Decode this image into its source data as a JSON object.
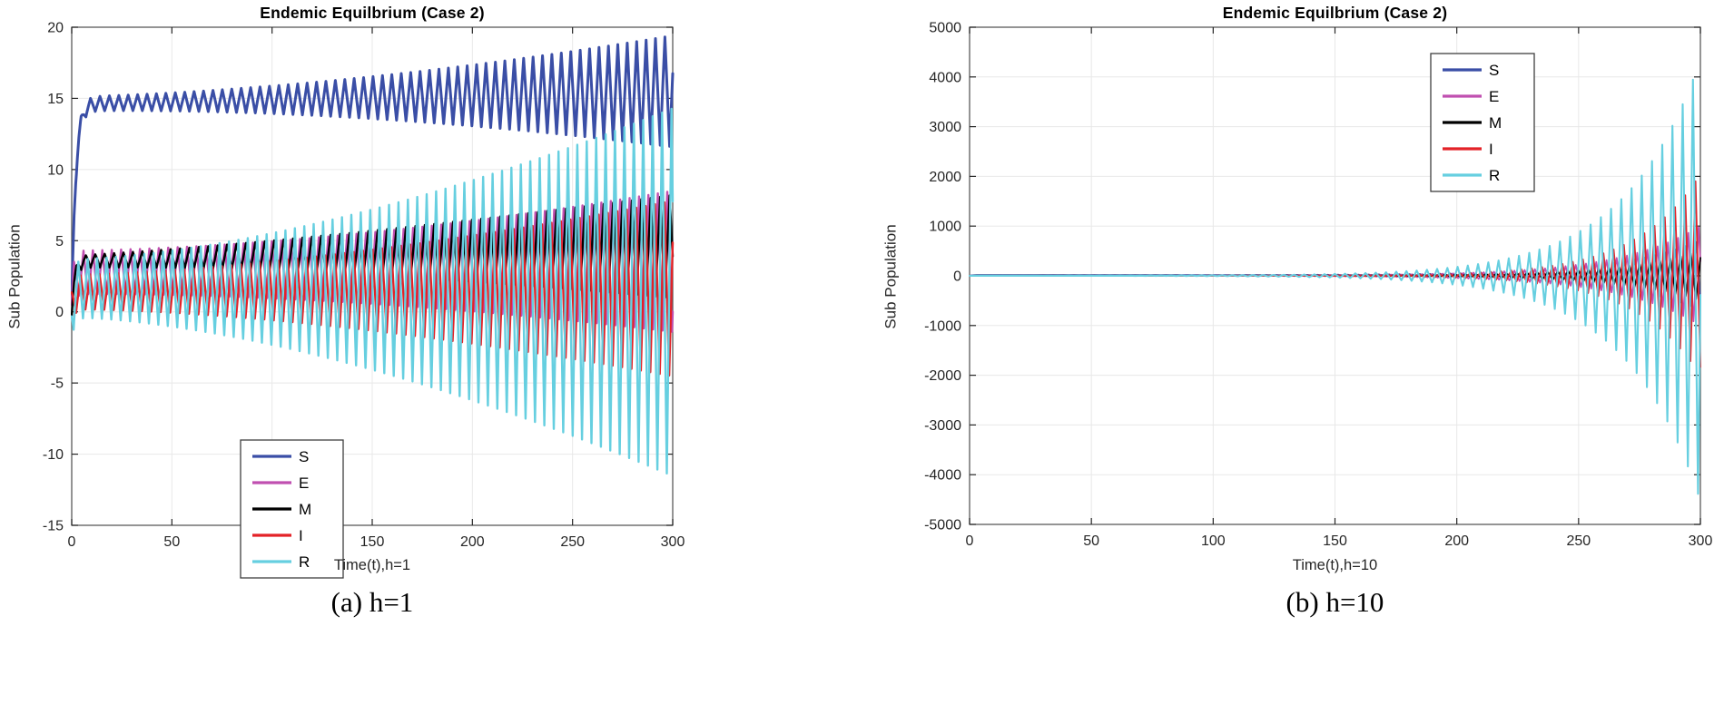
{
  "page": {
    "background": "#ffffff"
  },
  "chart_data": [
    {
      "id": "left",
      "type": "line",
      "title": "Endemic Equilbrium (Case 2)",
      "xlabel": "Time(t),h=1",
      "ylabel": "Sub Population",
      "caption": "(a) h=1",
      "xlim": [
        0,
        300
      ],
      "ylim": [
        -15,
        20
      ],
      "xticks": [
        0,
        50,
        100,
        150,
        200,
        250,
        300
      ],
      "yticks": [
        -15,
        -10,
        -5,
        0,
        5,
        10,
        15,
        20
      ],
      "grid": true,
      "legend_position": "inside-lower-left",
      "legend": [
        {
          "label": "S",
          "color": "#3a4ea6"
        },
        {
          "label": "E",
          "color": "#c04fb0"
        },
        {
          "label": "M",
          "color": "#000000"
        },
        {
          "label": "I",
          "color": "#e32227"
        },
        {
          "label": "R",
          "color": "#66cfe0"
        }
      ],
      "series": [
        {
          "name": "S",
          "color": "#3a4ea6",
          "width": 3.0,
          "model": {
            "start": 0.3,
            "settle": 14.6,
            "base_end": 15.5,
            "tau": 2.0,
            "amp_mode": "poly",
            "amp_start": 0.5,
            "amp_end": 3.9,
            "amp_power": 1.8,
            "period": 4.7,
            "phase": 0.5,
            "asym": 1.0
          }
        },
        {
          "name": "E",
          "color": "#c04fb0",
          "width": 2.4,
          "model": {
            "start": 0.5,
            "settle": 2.6,
            "base_end": 3.0,
            "tau": 1.2,
            "amp_mode": "poly",
            "amp_start": 1.7,
            "amp_end": 5.5,
            "amp_power": 1.8,
            "period": 4.7,
            "phase": 0.25,
            "asym": 0.8
          }
        },
        {
          "name": "M",
          "color": "#000000",
          "width": 2.4,
          "model": {
            "start": 0.2,
            "settle": 3.6,
            "base_end": 5.3,
            "tau": 1.5,
            "amp_mode": "poly",
            "amp_start": 0.35,
            "amp_end": 2.9,
            "amp_power": 1.5,
            "period": 4.7,
            "phase": 0.0,
            "asym": 1.5
          }
        },
        {
          "name": "I",
          "color": "#e32227",
          "width": 2.4,
          "model": {
            "start": 0.4,
            "settle": 1.4,
            "base_end": 1.7,
            "tau": 1.5,
            "amp_mode": "poly",
            "amp_start": 1.2,
            "amp_end": 6.1,
            "amp_power": 1.6,
            "period": 4.7,
            "phase": 0.55,
            "asym": 1.02
          }
        },
        {
          "name": "R",
          "color": "#66cfe0",
          "width": 2.4,
          "model": {
            "start": 0.1,
            "settle": 1.7,
            "base_end": 1.7,
            "tau": 1.5,
            "amp_mode": "poly",
            "amp_start": 2.0,
            "amp_end": 12.6,
            "amp_power": 1.6,
            "period": 4.7,
            "phase": 0.8,
            "asym": 1.05
          }
        }
      ],
      "readings": {
        "S_equilibrium_band": [
          14.5,
          15.5
        ],
        "S_envelope_at_t300": [
          11.6,
          19.4
        ],
        "M_peak_line_rises_to": 8.2,
        "I_envelope_at_t300": [
          -4.5,
          7.8
        ],
        "R_envelope_at_t300": [
          -11.5,
          14.3
        ]
      }
    },
    {
      "id": "right",
      "type": "line",
      "title": "Endemic Equilbrium (Case 2)",
      "xlabel": "Time(t),h=10",
      "ylabel": "Sub Population",
      "caption": "(b) h=10",
      "xlim": [
        0,
        300
      ],
      "ylim": [
        -5000,
        5000
      ],
      "xticks": [
        0,
        50,
        100,
        150,
        200,
        250,
        300
      ],
      "yticks": [
        -5000,
        -4000,
        -3000,
        -2000,
        -1000,
        0,
        1000,
        2000,
        3000,
        4000,
        5000
      ],
      "grid": true,
      "legend_position": "inside-upper-right",
      "legend": [
        {
          "label": "S",
          "color": "#3a4ea6"
        },
        {
          "label": "E",
          "color": "#c04fb0"
        },
        {
          "label": "M",
          "color": "#000000"
        },
        {
          "label": "I",
          "color": "#e32227"
        },
        {
          "label": "R",
          "color": "#66cfe0"
        }
      ],
      "series": [
        {
          "name": "S",
          "color": "#3a4ea6",
          "width": 1.8,
          "model": {
            "start": 0.3,
            "settle": 15,
            "base_end": 15,
            "tau": 1.0,
            "amp_mode": "exp",
            "amp_end": 700,
            "exp_rate": 0.03,
            "period": 4.2,
            "phase": 0.5,
            "asym": 1.0
          }
        },
        {
          "name": "E",
          "color": "#c04fb0",
          "width": 1.8,
          "model": {
            "start": 0.5,
            "settle": 2.6,
            "base_end": 2.6,
            "tau": 1.0,
            "amp_mode": "exp",
            "amp_end": 1000,
            "exp_rate": 0.03,
            "period": 4.2,
            "phase": 0.25,
            "asym": 1.0
          }
        },
        {
          "name": "M",
          "color": "#000000",
          "width": 1.8,
          "model": {
            "start": 0.2,
            "settle": 3.6,
            "base_end": 3.6,
            "tau": 1.0,
            "amp_mode": "exp",
            "amp_end": 500,
            "exp_rate": 0.03,
            "period": 4.2,
            "phase": 0.0,
            "asym": 1.0
          }
        },
        {
          "name": "I",
          "color": "#e32227",
          "width": 1.9,
          "model": {
            "start": 0.4,
            "settle": 1.4,
            "base_end": 1.4,
            "tau": 1.0,
            "amp_mode": "exp",
            "amp_end": 2050,
            "exp_rate": 0.038,
            "period": 4.2,
            "phase": 0.55,
            "asym": 0.98
          }
        },
        {
          "name": "R",
          "color": "#66cfe0",
          "width": 2.1,
          "model": {
            "start": 0.1,
            "settle": 1.7,
            "base_end": 1.7,
            "tau": 1.0,
            "amp_mode": "exp",
            "amp_end": 4350,
            "exp_rate": 0.032,
            "period": 4.2,
            "phase": 0.8,
            "asym": 1.04
          }
        }
      ],
      "readings": {
        "flat_near_zero_until_t": 150,
        "R_envelope_at_t300": [
          -4500,
          4200
        ],
        "I_envelope_at_t300": [
          -2000,
          2100
        ]
      }
    }
  ]
}
